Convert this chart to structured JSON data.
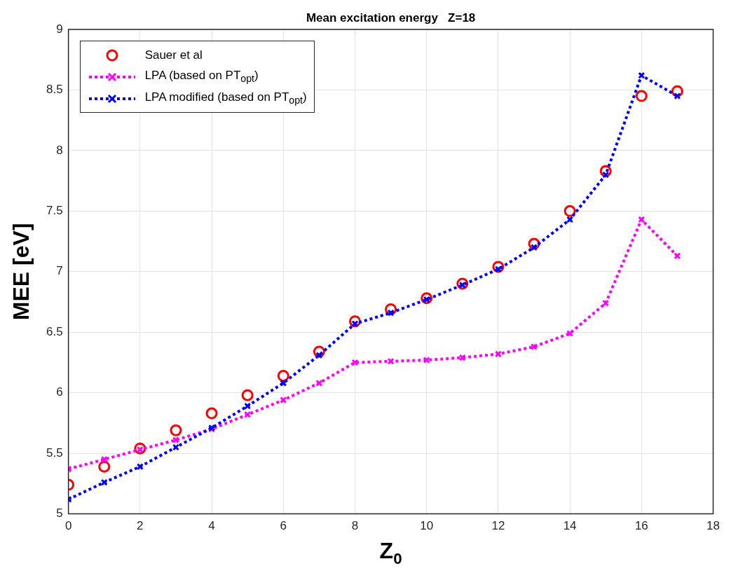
{
  "chart_data": {
    "type": "line",
    "title": "Mean excitation energy   Z=18",
    "xlabel": "Z$_{0}$",
    "ylabel": "MEE [eV]",
    "x": [
      0,
      1,
      2,
      3,
      4,
      5,
      6,
      7,
      8,
      9,
      10,
      11,
      12,
      13,
      14,
      15,
      16,
      17
    ],
    "series": [
      {
        "name": "Sauer et al",
        "type": "scatter",
        "marker": "circle",
        "color": "#ff0000",
        "values": [
          5.24,
          5.39,
          5.54,
          5.69,
          5.83,
          5.98,
          6.14,
          6.34,
          6.59,
          6.69,
          6.78,
          6.9,
          7.04,
          7.23,
          7.5,
          7.83,
          8.45,
          8.49
        ]
      },
      {
        "name": "LPA (based on PT$_{opt}$)",
        "type": "line",
        "marker": "cross",
        "line_style": "dotted",
        "color": "#ff00ff",
        "values": [
          5.37,
          5.45,
          5.53,
          5.61,
          5.7,
          5.82,
          5.94,
          6.08,
          6.25,
          6.26,
          6.27,
          6.29,
          6.32,
          6.38,
          6.49,
          6.74,
          7.43,
          7.13
        ]
      },
      {
        "name": "LPA modified (based on PT$_{opt}$)",
        "type": "line",
        "marker": "cross",
        "line_style": "dotted",
        "color": "#0000ff",
        "values": [
          5.12,
          5.26,
          5.39,
          5.55,
          5.71,
          5.89,
          6.08,
          6.31,
          6.57,
          6.66,
          6.77,
          6.89,
          7.02,
          7.2,
          7.43,
          7.8,
          8.62,
          8.45
        ]
      }
    ],
    "xlim": [
      0,
      18
    ],
    "xticks": [
      0,
      2,
      4,
      6,
      8,
      10,
      12,
      14,
      16,
      18
    ],
    "ylim": [
      5,
      9
    ],
    "yticks": [
      5,
      5.5,
      6,
      6.5,
      7,
      7.5,
      8,
      8.5,
      9
    ],
    "grid": true,
    "legend": "top left"
  }
}
